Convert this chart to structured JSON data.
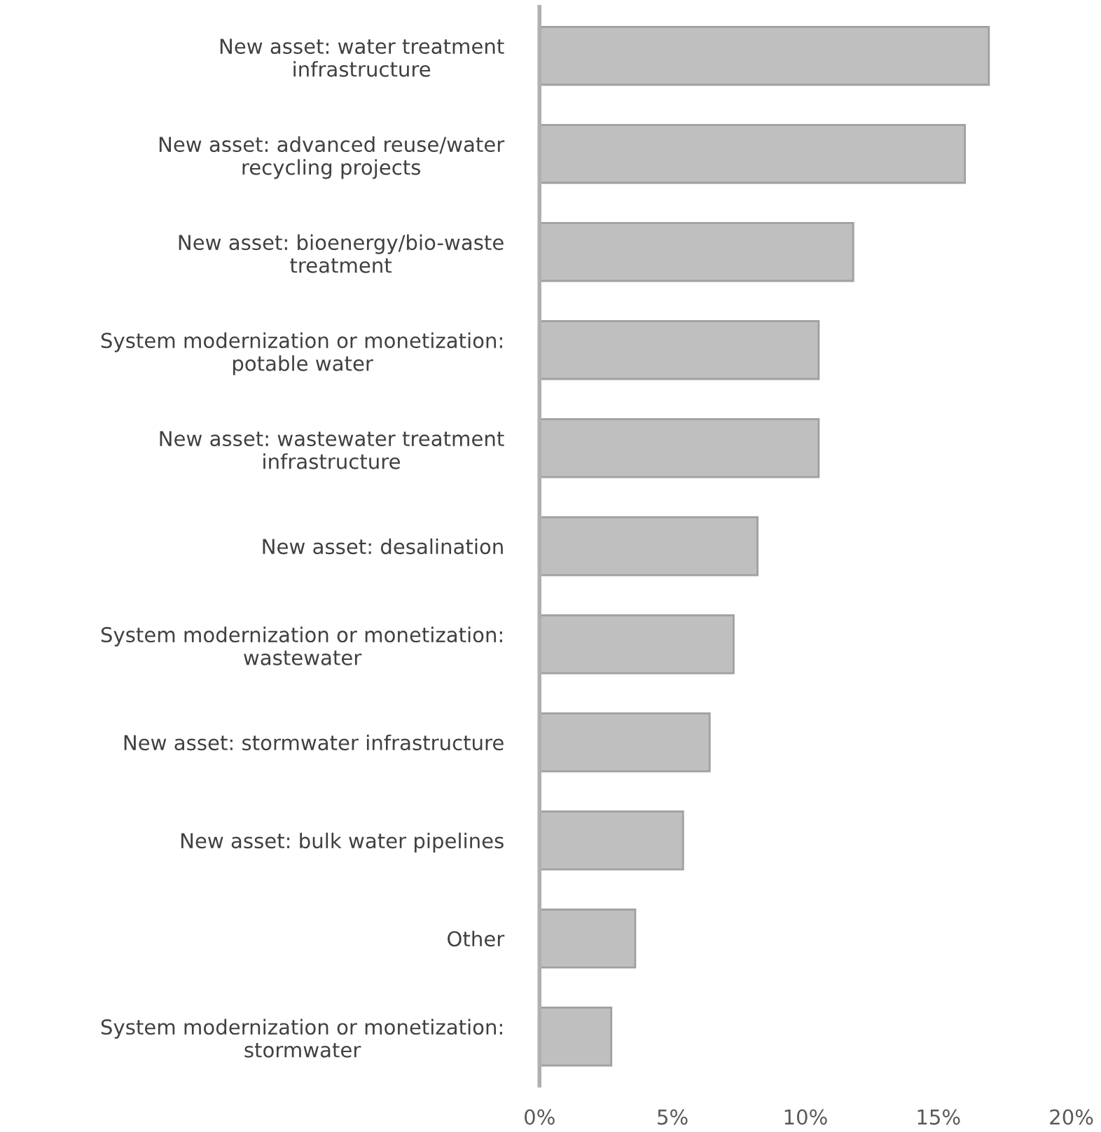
{
  "chart_data": {
    "type": "bar",
    "orientation": "horizontal",
    "categories": [
      "New asset: water treatment\ninfrastructure",
      "New asset: advanced reuse/water\nrecycling projects",
      "New asset: bioenergy/bio-waste\ntreatment",
      "System modernization or monetization:\npotable water",
      "New asset: wastewater treatment\ninfrastructure",
      "New asset: desalination",
      "System modernization or monetization:\nwastewater",
      "New asset: stormwater infrastructure",
      "New asset: bulk water pipelines",
      "Other",
      "System modernization or monetization:\nstormwater"
    ],
    "values": [
      16.9,
      16.0,
      11.8,
      10.5,
      10.5,
      8.2,
      7.3,
      6.4,
      5.4,
      3.6,
      2.7
    ],
    "color": "#bfbfbf",
    "xlim": [
      0,
      20
    ],
    "xticks": [
      {
        "value": 0,
        "label": "0%"
      },
      {
        "value": 5,
        "label": "5%"
      },
      {
        "value": 10,
        "label": "10%"
      },
      {
        "value": 15,
        "label": "15%"
      },
      {
        "value": 20,
        "label": "20%"
      }
    ],
    "grid": false
  }
}
